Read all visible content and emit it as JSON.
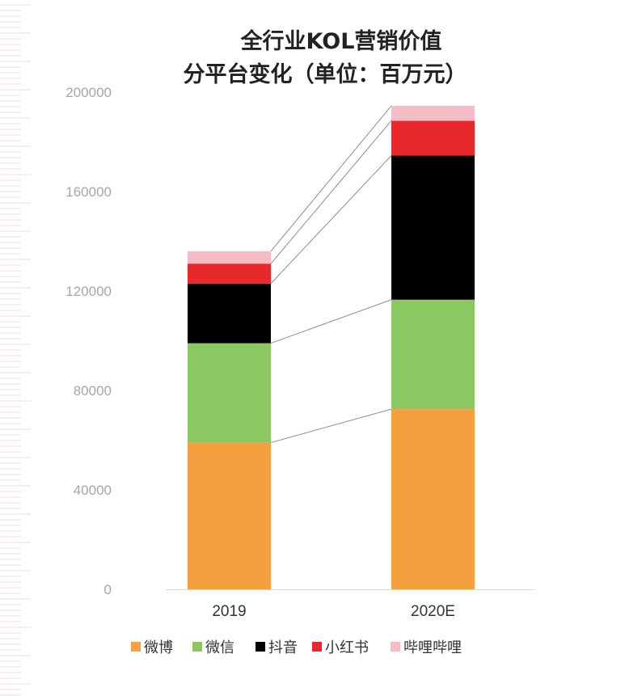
{
  "chart_data": {
    "type": "bar",
    "stacked": true,
    "title": [
      "全行业KOL营销价值",
      "分平台变化（单位：百万元）"
    ],
    "categories": [
      "2019",
      "2020E"
    ],
    "ylim": [
      0,
      200000
    ],
    "yticks": [
      0,
      40000,
      80000,
      120000,
      160000,
      200000
    ],
    "grid": false,
    "legend_position": "bottom",
    "series": [
      {
        "name": "微博",
        "color": "#f4a040",
        "values": [
          59000,
          72500
        ]
      },
      {
        "name": "微信",
        "color": "#8cc862",
        "values": [
          40000,
          44000
        ]
      },
      {
        "name": "抖音",
        "color": "#000000",
        "values": [
          24000,
          58000
        ]
      },
      {
        "name": "小红书",
        "color": "#e8282b",
        "values": [
          8000,
          14000
        ]
      },
      {
        "name": "哔哩哔哩",
        "color": "#f6bcc6",
        "values": [
          5000,
          6000
        ]
      }
    ]
  }
}
